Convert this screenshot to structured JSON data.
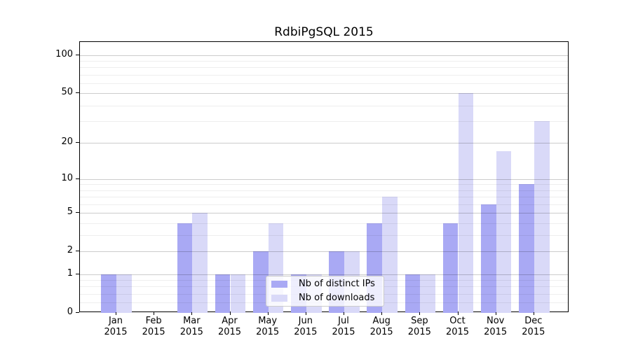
{
  "chart_data": {
    "type": "bar",
    "title": "RdbiPgSQL 2015",
    "categories": [
      "Jan",
      "Feb",
      "Mar",
      "Apr",
      "May",
      "Jun",
      "Jul",
      "Aug",
      "Sep",
      "Oct",
      "Nov",
      "Dec"
    ],
    "category_year": "2015",
    "series": [
      {
        "name": "Nb of distinct IPs",
        "color": "#a9a9f4",
        "values": [
          1,
          0,
          4,
          1,
          2,
          1,
          2,
          4,
          1,
          4,
          6,
          9
        ]
      },
      {
        "name": "Nb of downloads",
        "color": "#d9d9f8",
        "values": [
          1,
          0,
          5,
          1,
          4,
          1,
          2,
          7,
          1,
          50,
          17,
          30
        ]
      }
    ],
    "xlabel": "",
    "ylabel": "",
    "yscale": "log1p",
    "ylim": [
      0,
      125
    ],
    "yticks": [
      0,
      1,
      2,
      5,
      10,
      20,
      50,
      100
    ],
    "yticks_minor": [
      0.2,
      0.4,
      0.6,
      0.8,
      3,
      4,
      6,
      7,
      8,
      9,
      30,
      40,
      60,
      70,
      80,
      90
    ],
    "grid": true,
    "legend": {
      "position": "lower center"
    }
  },
  "style": {
    "major_grid_color": "rgba(0,0,0,0.20)",
    "minor_grid_color": "rgba(0,0,0,0.065)",
    "axis_color": "#000000",
    "background": "#ffffff"
  }
}
